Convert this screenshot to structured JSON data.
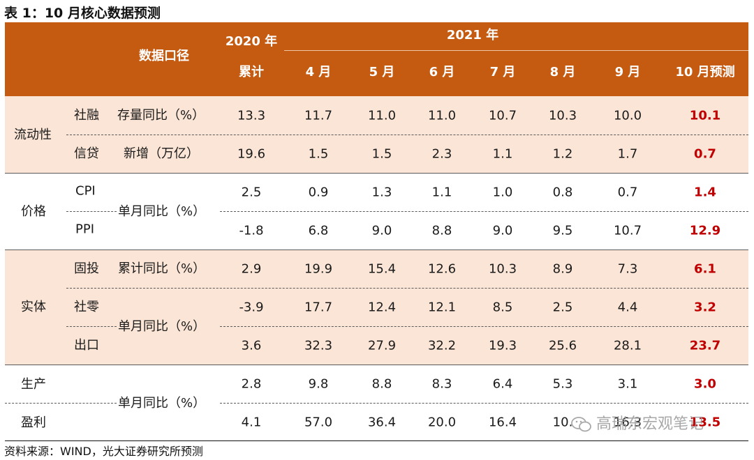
{
  "title": "表 1：10 月核心数据预测",
  "header": {
    "caliber": "数据口径",
    "year2020": "2020 年",
    "cumulative": "累计",
    "year2021": "2021 年",
    "months": [
      "4 月",
      "5 月",
      "6 月",
      "7 月",
      "8 月",
      "9 月"
    ],
    "forecast": "10 月预测"
  },
  "groups": {
    "liquidity": "流动性",
    "price": "价格",
    "real": "实体",
    "production": "生产",
    "profit": "盈利"
  },
  "metrics": {
    "social_financing": "存量同比（%）",
    "credit": "新增（万亿）",
    "price_mom": "单月同比（%）",
    "fai": "累计同比（%）",
    "retail_export": "单月同比（%）",
    "prod_profit": "单月同比（%）"
  },
  "rows": [
    {
      "item": "社融",
      "values": [
        "13.3",
        "11.7",
        "11.0",
        "11.0",
        "10.7",
        "10.3",
        "10.0"
      ],
      "forecast": "10.1"
    },
    {
      "item": "信贷",
      "values": [
        "19.6",
        "1.5",
        "1.5",
        "2.3",
        "1.1",
        "1.2",
        "1.7"
      ],
      "forecast": "0.7"
    },
    {
      "item": "CPI",
      "values": [
        "2.5",
        "0.9",
        "1.3",
        "1.1",
        "1.0",
        "0.8",
        "0.7"
      ],
      "forecast": "1.4"
    },
    {
      "item": "PPI",
      "values": [
        "-1.8",
        "6.8",
        "9.0",
        "8.8",
        "9.0",
        "9.5",
        "10.7"
      ],
      "forecast": "12.9"
    },
    {
      "item": "固投",
      "values": [
        "2.9",
        "19.9",
        "15.4",
        "12.6",
        "10.3",
        "8.9",
        "7.3"
      ],
      "forecast": "6.1"
    },
    {
      "item": "社零",
      "values": [
        "-3.9",
        "17.7",
        "12.4",
        "12.1",
        "8.5",
        "2.5",
        "4.4"
      ],
      "forecast": "3.2"
    },
    {
      "item": "出口",
      "values": [
        "3.6",
        "32.3",
        "27.9",
        "32.2",
        "19.3",
        "25.6",
        "28.1"
      ],
      "forecast": "23.7"
    },
    {
      "item": "",
      "values": [
        "2.8",
        "9.8",
        "8.8",
        "8.3",
        "6.4",
        "5.3",
        "3.1"
      ],
      "forecast": "3.0"
    },
    {
      "item": "",
      "values": [
        "4.1",
        "57.0",
        "36.4",
        "20.0",
        "16.4",
        "10.",
        "16.3"
      ],
      "forecast": "13.5"
    }
  ],
  "source": "资料来源：WIND，光大证券研究所预测",
  "watermark": "高瑞东宏观笔记",
  "colors": {
    "header": "#c55a11",
    "band": "#fbe5d6",
    "forecast_text": "#c00000"
  }
}
